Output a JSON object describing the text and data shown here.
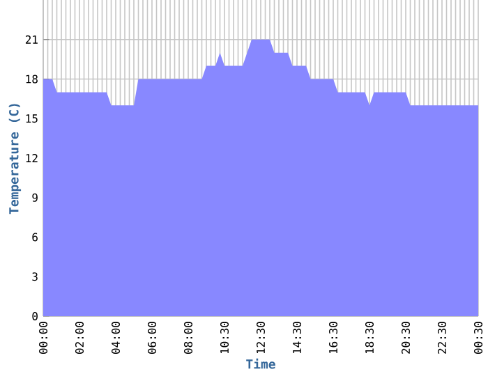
{
  "chart_data": {
    "type": "area",
    "xlabel": "Time",
    "ylabel": "Temperature (C)",
    "categories": [
      "00:00",
      null,
      null,
      null,
      null,
      null,
      null,
      null,
      "02:00",
      null,
      null,
      null,
      null,
      null,
      null,
      null,
      "04:00",
      null,
      null,
      null,
      null,
      null,
      null,
      null,
      "06:00",
      null,
      null,
      null,
      null,
      null,
      null,
      null,
      "08:00",
      null,
      null,
      null,
      null,
      null,
      null,
      null,
      "10:30",
      null,
      null,
      null,
      null,
      null,
      null,
      null,
      "12:30",
      null,
      null,
      null,
      null,
      null,
      null,
      null,
      "14:30",
      null,
      null,
      null,
      null,
      null,
      null,
      null,
      "16:30",
      null,
      null,
      null,
      null,
      null,
      null,
      null,
      "18:30",
      null,
      null,
      null,
      null,
      null,
      null,
      null,
      "20:30",
      null,
      null,
      null,
      null,
      null,
      null,
      null,
      "22:30",
      null,
      null,
      null,
      null,
      null,
      null,
      null,
      "00:30"
    ],
    "values": [
      18,
      18,
      18,
      17,
      17,
      17,
      17,
      17,
      17,
      17,
      17,
      17,
      17,
      17,
      17,
      16,
      16,
      16,
      16,
      16,
      16,
      18,
      18,
      18,
      18,
      18,
      18,
      18,
      18,
      18,
      18,
      18,
      18,
      18,
      18,
      18,
      19,
      19,
      19,
      20,
      19,
      19,
      19,
      19,
      19,
      20,
      21,
      21,
      21,
      21,
      21,
      20,
      20,
      20,
      20,
      19,
      19,
      19,
      19,
      18,
      18,
      18,
      18,
      18,
      18,
      17,
      17,
      17,
      17,
      17,
      17,
      17,
      16,
      17,
      17,
      17,
      17,
      17,
      17,
      17,
      17,
      16,
      16,
      16,
      16,
      16,
      16,
      16,
      16,
      16,
      16,
      16,
      16,
      16,
      16,
      16,
      16
    ],
    "color": "#8888ff",
    "ylim": [
      0,
      24
    ],
    "yticks": [
      0,
      3,
      6,
      9,
      12,
      15,
      18,
      21
    ],
    "grid": true
  }
}
